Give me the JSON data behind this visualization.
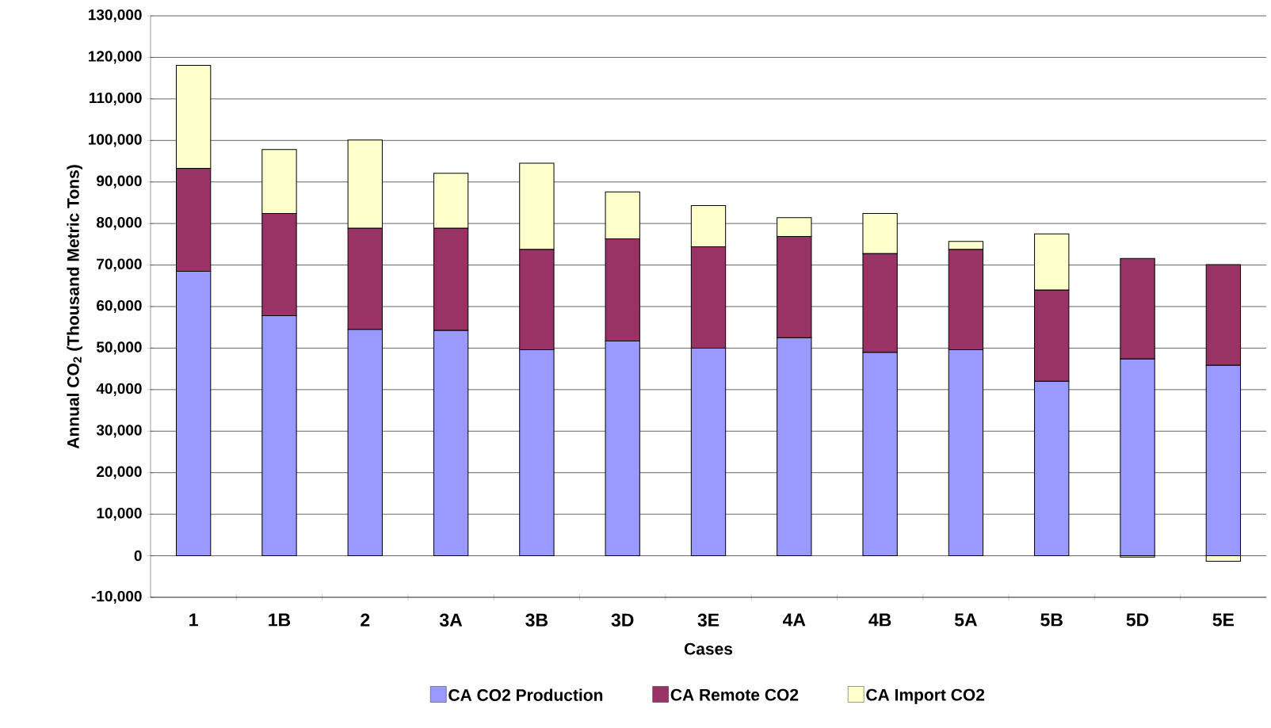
{
  "chart_data": {
    "type": "bar",
    "stacked": true,
    "xlabel": "Cases",
    "ylabel": "Annual CO$_{2}$ (Thousand Metric Tons)",
    "categories": [
      "1",
      "1B",
      "2",
      "3A",
      "3B",
      "3D",
      "3E",
      "4A",
      "4B",
      "5A",
      "5B",
      "5D",
      "5E"
    ],
    "series": [
      {
        "name": "CA CO2 Production",
        "color": "#9999ff",
        "values": [
          68500,
          57800,
          54500,
          54300,
          49600,
          51700,
          50000,
          52500,
          49000,
          49600,
          42000,
          47400,
          45900
        ]
      },
      {
        "name": "CA Remote CO2",
        "color": "#993366",
        "values": [
          24800,
          24600,
          24400,
          24600,
          24200,
          24600,
          24400,
          24400,
          23800,
          24200,
          22000,
          24200,
          24200
        ]
      },
      {
        "name": "CA Import CO2",
        "color": "#ffffcc",
        "values": [
          24800,
          15400,
          21200,
          13200,
          20700,
          11300,
          9900,
          4500,
          9600,
          1900,
          13500,
          -300,
          -1300
        ]
      }
    ],
    "ylim": [
      -10000,
      130000
    ],
    "yticks": [
      {
        "value": -10000,
        "label": "-10,000"
      },
      0,
      {
        "value": 10000,
        "label": "10,000"
      },
      {
        "value": 20000,
        "label": "20,000"
      },
      {
        "value": 30000,
        "label": "30,000"
      },
      {
        "value": 40000,
        "label": "40,000"
      },
      {
        "value": 50000,
        "label": "50,000"
      },
      {
        "value": 60000,
        "label": "60,000"
      },
      {
        "value": 70000,
        "label": "70,000"
      },
      {
        "value": 80000,
        "label": "80,000"
      },
      {
        "value": 90000,
        "label": "90,000"
      },
      {
        "value": 100000,
        "label": "100,000"
      },
      {
        "value": 110000,
        "label": "110,000"
      },
      {
        "value": 120000,
        "label": "120,000"
      },
      {
        "value": 130000,
        "label": "130,000"
      }
    ],
    "grid": "y",
    "legend": "bottom"
  }
}
